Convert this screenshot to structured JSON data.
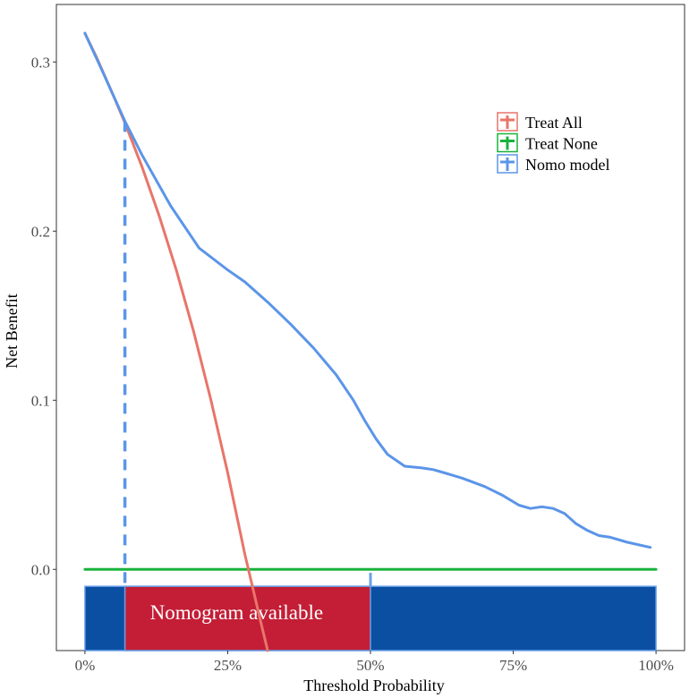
{
  "chart_data": {
    "type": "line",
    "title": "",
    "xlabel": "Threshold Probability",
    "ylabel": "Net Benefit",
    "xlim": [
      -0.05,
      1.05
    ],
    "ylim": [
      -0.048,
      0.334
    ],
    "grid": false,
    "x_ticks": [
      0,
      0.25,
      0.5,
      0.75,
      1.0
    ],
    "x_tick_labels": [
      "0%",
      "25%",
      "50%",
      "75%",
      "100%"
    ],
    "y_ticks": [
      0.0,
      0.1,
      0.2,
      0.3
    ],
    "y_tick_labels": [
      "0.0",
      "0.1",
      "0.2",
      "0.3"
    ],
    "legend_position": "top-right",
    "series": [
      {
        "name": "Treat All",
        "color": "#e8756a",
        "x": [
          0,
          0.02,
          0.05,
          0.07,
          0.1,
          0.13,
          0.16,
          0.19,
          0.22,
          0.25,
          0.28,
          0.31,
          0.32
        ],
        "y": [
          0.317,
          0.303,
          0.28,
          0.264,
          0.238,
          0.209,
          0.177,
          0.141,
          0.101,
          0.057,
          0.009,
          -0.034,
          -0.048
        ]
      },
      {
        "name": "Treat None",
        "color": "#19b33c",
        "x": [
          0,
          1.0
        ],
        "y": [
          0,
          0
        ]
      },
      {
        "name": "Nomo model",
        "color": "#5b95e8",
        "x": [
          0,
          0.03,
          0.07,
          0.1,
          0.15,
          0.2,
          0.25,
          0.28,
          0.32,
          0.36,
          0.4,
          0.44,
          0.47,
          0.49,
          0.51,
          0.53,
          0.56,
          0.59,
          0.61,
          0.63,
          0.66,
          0.7,
          0.73,
          0.76,
          0.78,
          0.8,
          0.82,
          0.84,
          0.86,
          0.88,
          0.9,
          0.92,
          0.95,
          0.99
        ],
        "y": [
          0.317,
          0.295,
          0.265,
          0.245,
          0.215,
          0.19,
          0.177,
          0.17,
          0.158,
          0.145,
          0.131,
          0.115,
          0.1,
          0.088,
          0.077,
          0.068,
          0.061,
          0.06,
          0.059,
          0.057,
          0.054,
          0.049,
          0.044,
          0.038,
          0.036,
          0.037,
          0.036,
          0.033,
          0.027,
          0.023,
          0.02,
          0.019,
          0.016,
          0.013
        ]
      }
    ],
    "reference_line": {
      "x": 0.07,
      "series": "Nomo model",
      "style": "dashed"
    },
    "bottom_band": {
      "x_start": 0,
      "x_end": 1.0,
      "color": "#0b4fa3",
      "available": {
        "x_start": 0.07,
        "x_end": 0.5,
        "label": "Nomogram available",
        "color": "#c31e36"
      }
    }
  }
}
